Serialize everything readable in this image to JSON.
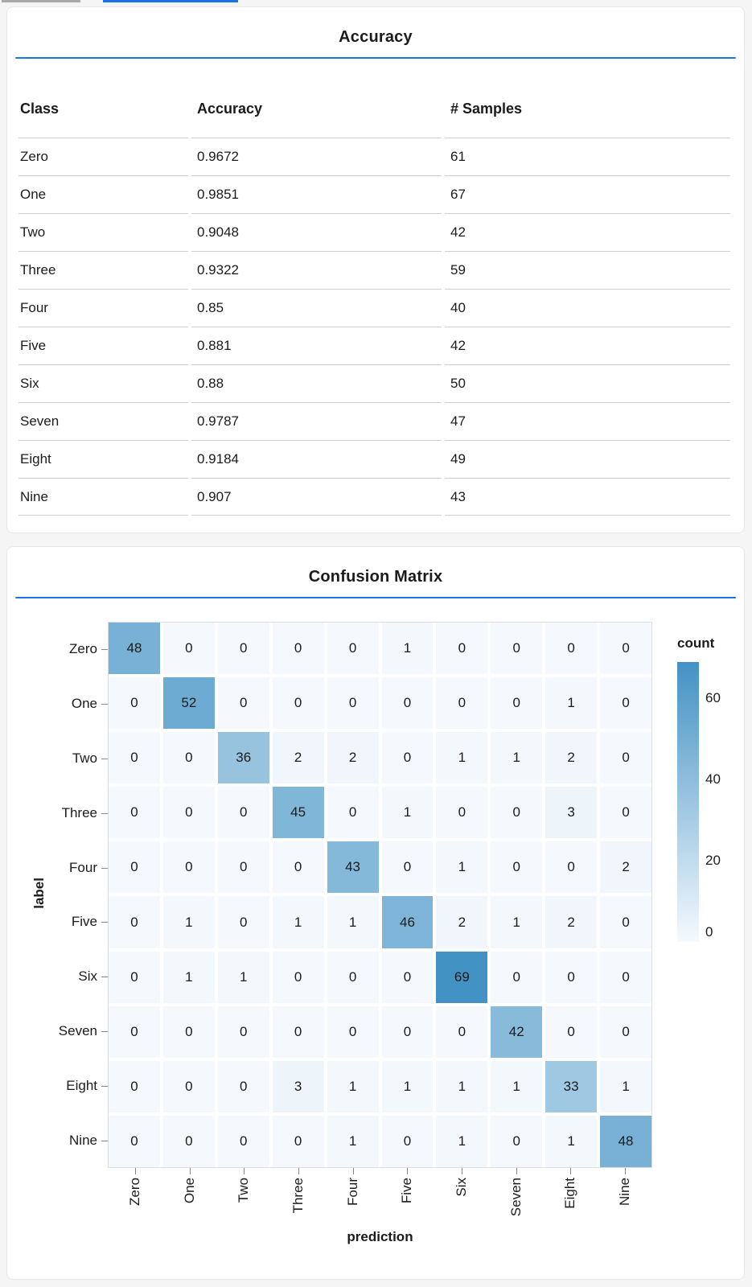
{
  "page": {
    "background": "#f5f5f6",
    "accent": "#1a73e8",
    "tab_indicators": {
      "inactive_color": "#a9a9a9",
      "active_color": "#1a73e8"
    }
  },
  "accuracy_panel": {
    "title": "Accuracy",
    "table": {
      "columns": [
        "Class",
        "Accuracy",
        "# Samples"
      ],
      "rows": [
        {
          "class": "Zero",
          "accuracy": "0.9672",
          "samples": "61"
        },
        {
          "class": "One",
          "accuracy": "0.9851",
          "samples": "67"
        },
        {
          "class": "Two",
          "accuracy": "0.9048",
          "samples": "42"
        },
        {
          "class": "Three",
          "accuracy": "0.9322",
          "samples": "59"
        },
        {
          "class": "Four",
          "accuracy": "0.85",
          "samples": "40"
        },
        {
          "class": "Five",
          "accuracy": "0.881",
          "samples": "42"
        },
        {
          "class": "Six",
          "accuracy": "0.88",
          "samples": "50"
        },
        {
          "class": "Seven",
          "accuracy": "0.9787",
          "samples": "47"
        },
        {
          "class": "Eight",
          "accuracy": "0.9184",
          "samples": "49"
        },
        {
          "class": "Nine",
          "accuracy": "0.907",
          "samples": "43"
        }
      ]
    }
  },
  "confusion_panel": {
    "title": "Confusion Matrix"
  },
  "chart_data": {
    "type": "heatmap",
    "title": "Confusion Matrix",
    "xlabel": "prediction",
    "ylabel": "label",
    "x_categories": [
      "Zero",
      "One",
      "Two",
      "Three",
      "Four",
      "Five",
      "Six",
      "Seven",
      "Eight",
      "Nine"
    ],
    "y_categories": [
      "Zero",
      "One",
      "Two",
      "Three",
      "Four",
      "Five",
      "Six",
      "Seven",
      "Eight",
      "Nine"
    ],
    "matrix": [
      [
        48,
        0,
        0,
        0,
        0,
        1,
        0,
        0,
        0,
        0
      ],
      [
        0,
        52,
        0,
        0,
        0,
        0,
        0,
        0,
        1,
        0
      ],
      [
        0,
        0,
        36,
        2,
        2,
        0,
        1,
        1,
        2,
        0
      ],
      [
        0,
        0,
        0,
        45,
        0,
        1,
        0,
        0,
        3,
        0
      ],
      [
        0,
        0,
        0,
        0,
        43,
        0,
        1,
        0,
        0,
        2
      ],
      [
        0,
        1,
        0,
        1,
        1,
        46,
        2,
        1,
        2,
        0
      ],
      [
        0,
        1,
        1,
        0,
        0,
        0,
        69,
        0,
        0,
        0
      ],
      [
        0,
        0,
        0,
        0,
        0,
        0,
        0,
        42,
        0,
        0
      ],
      [
        0,
        0,
        0,
        3,
        1,
        1,
        1,
        1,
        33,
        1
      ],
      [
        0,
        0,
        0,
        0,
        1,
        0,
        1,
        0,
        1,
        48
      ]
    ],
    "legend": {
      "title": "count",
      "tick_values": [
        60,
        40,
        20,
        0
      ],
      "domain": [
        0,
        69
      ]
    },
    "colors": {
      "low": "#f5f9fd",
      "high": "#4292c4"
    },
    "grid": false,
    "legend_position": "right"
  }
}
